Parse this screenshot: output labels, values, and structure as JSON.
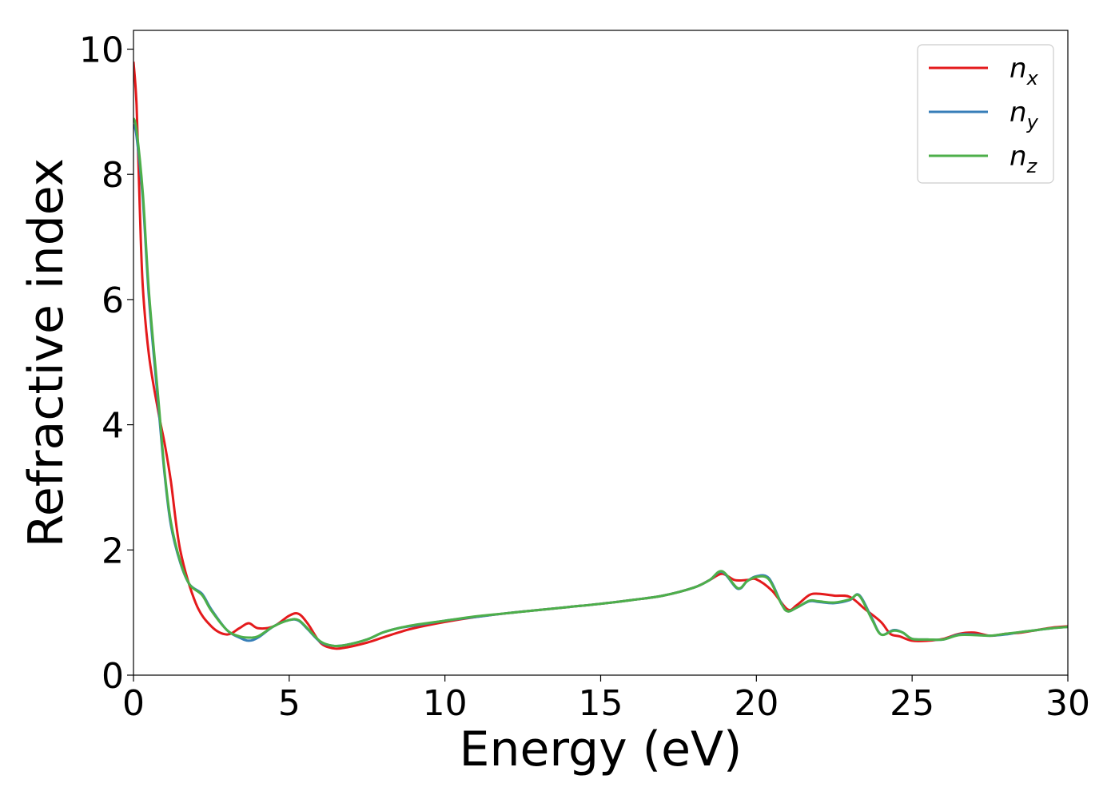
{
  "chart_data": {
    "type": "line",
    "xlabel": "Energy (eV)",
    "ylabel": "Refractive index",
    "xlim": [
      0,
      30
    ],
    "ylim": [
      0,
      10.3
    ],
    "xticks": [
      "0",
      "5",
      "10",
      "15",
      "20",
      "25",
      "30"
    ],
    "yticks": [
      "0",
      "2",
      "4",
      "6",
      "8",
      "10"
    ],
    "grid": false,
    "legend_position": "top-right",
    "series": [
      {
        "name": "n",
        "subscript": "x",
        "color": "#e41a1c",
        "x": [
          0,
          0.1,
          0.2,
          0.3,
          0.5,
          0.8,
          1.0,
          1.2,
          1.5,
          2.0,
          2.5,
          3.0,
          3.4,
          3.7,
          4.0,
          4.5,
          5.0,
          5.3,
          5.6,
          6.0,
          6.4,
          6.8,
          7.5,
          8.0,
          8.5,
          9.0,
          10.0,
          11.0,
          12.0,
          13.0,
          14.0,
          15.0,
          16.0,
          17.0,
          18.0,
          18.5,
          18.9,
          19.3,
          19.7,
          20.0,
          20.5,
          21.0,
          21.3,
          21.7,
          22.0,
          22.5,
          23.0,
          23.5,
          24.0,
          24.3,
          24.6,
          25.0,
          25.5,
          26.0,
          26.5,
          27.0,
          27.5,
          28.0,
          28.5,
          29.0,
          29.5,
          30.0
        ],
        "y": [
          9.8,
          9.1,
          7.5,
          6.2,
          5.1,
          4.2,
          3.7,
          3.1,
          2.0,
          1.15,
          0.78,
          0.65,
          0.75,
          0.83,
          0.75,
          0.78,
          0.95,
          0.98,
          0.82,
          0.52,
          0.43,
          0.44,
          0.52,
          0.6,
          0.68,
          0.75,
          0.85,
          0.93,
          0.99,
          1.04,
          1.09,
          1.14,
          1.2,
          1.27,
          1.4,
          1.52,
          1.62,
          1.52,
          1.52,
          1.53,
          1.35,
          1.05,
          1.12,
          1.28,
          1.3,
          1.27,
          1.25,
          1.05,
          0.85,
          0.66,
          0.62,
          0.55,
          0.55,
          0.58,
          0.66,
          0.68,
          0.63,
          0.66,
          0.68,
          0.72,
          0.76,
          0.78
        ]
      },
      {
        "name": "n",
        "subscript": "y",
        "color": "#377eb8",
        "x": [
          0,
          0.1,
          0.3,
          0.5,
          0.8,
          1.0,
          1.2,
          1.5,
          1.8,
          2.2,
          2.5,
          3.0,
          3.4,
          3.7,
          4.0,
          4.5,
          5.0,
          5.3,
          5.6,
          6.0,
          6.4,
          6.8,
          7.5,
          8.0,
          8.5,
          9.0,
          10.0,
          11.0,
          12.0,
          13.0,
          14.0,
          15.0,
          16.0,
          17.0,
          18.0,
          18.5,
          18.9,
          19.4,
          19.7,
          20.0,
          20.4,
          20.8,
          21.0,
          21.3,
          21.7,
          22.0,
          22.5,
          23.0,
          23.3,
          23.7,
          24.0,
          24.4,
          24.7,
          25.0,
          25.5,
          26.0,
          26.5,
          27.0,
          27.5,
          28.0,
          28.5,
          29.0,
          29.5,
          30.0
        ],
        "y": [
          8.8,
          8.6,
          7.6,
          6.0,
          4.3,
          3.2,
          2.4,
          1.8,
          1.45,
          1.3,
          1.05,
          0.72,
          0.6,
          0.55,
          0.6,
          0.78,
          0.88,
          0.87,
          0.73,
          0.53,
          0.47,
          0.48,
          0.57,
          0.68,
          0.75,
          0.79,
          0.87,
          0.93,
          0.99,
          1.04,
          1.09,
          1.14,
          1.2,
          1.27,
          1.4,
          1.52,
          1.65,
          1.38,
          1.5,
          1.58,
          1.55,
          1.15,
          1.02,
          1.08,
          1.18,
          1.17,
          1.15,
          1.2,
          1.28,
          0.92,
          0.65,
          0.72,
          0.68,
          0.58,
          0.57,
          0.57,
          0.65,
          0.65,
          0.63,
          0.65,
          0.69,
          0.72,
          0.75,
          0.77
        ]
      },
      {
        "name": "n",
        "subscript": "z",
        "color": "#4daf4a",
        "x": [
          0,
          0.1,
          0.3,
          0.5,
          0.8,
          1.0,
          1.2,
          1.5,
          1.8,
          2.2,
          2.5,
          3.0,
          3.4,
          3.7,
          4.0,
          4.5,
          5.0,
          5.3,
          5.6,
          6.0,
          6.4,
          6.8,
          7.5,
          8.0,
          8.5,
          9.0,
          10.0,
          11.0,
          12.0,
          13.0,
          14.0,
          15.0,
          16.0,
          17.0,
          18.0,
          18.5,
          18.9,
          19.4,
          19.7,
          20.0,
          20.4,
          20.8,
          21.0,
          21.3,
          21.7,
          22.0,
          22.5,
          23.0,
          23.3,
          23.7,
          24.0,
          24.4,
          24.7,
          25.0,
          25.5,
          26.0,
          26.5,
          27.0,
          27.5,
          28.0,
          28.5,
          29.0,
          29.5,
          30.0
        ],
        "y": [
          8.9,
          8.7,
          7.7,
          6.1,
          4.4,
          3.25,
          2.45,
          1.82,
          1.45,
          1.28,
          1.03,
          0.72,
          0.62,
          0.6,
          0.62,
          0.78,
          0.88,
          0.88,
          0.74,
          0.54,
          0.47,
          0.48,
          0.57,
          0.68,
          0.75,
          0.8,
          0.87,
          0.94,
          0.99,
          1.04,
          1.09,
          1.14,
          1.2,
          1.27,
          1.4,
          1.52,
          1.66,
          1.39,
          1.5,
          1.57,
          1.53,
          1.14,
          1.02,
          1.08,
          1.19,
          1.18,
          1.16,
          1.21,
          1.27,
          0.9,
          0.65,
          0.71,
          0.68,
          0.58,
          0.57,
          0.57,
          0.64,
          0.64,
          0.63,
          0.66,
          0.69,
          0.72,
          0.75,
          0.77
        ]
      }
    ]
  }
}
